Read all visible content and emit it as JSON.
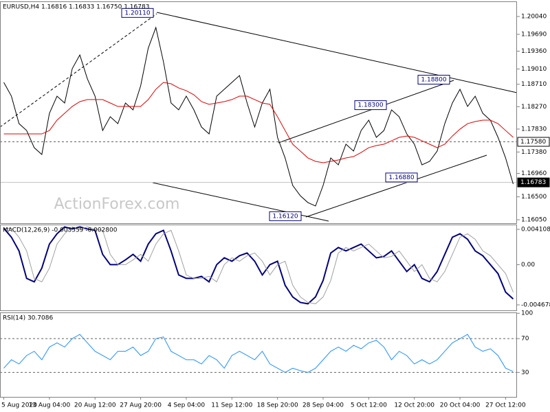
{
  "chart_data": [
    {
      "type": "line",
      "title": "EURUSD,H4  1.16816 1.16833 1.16750 1.16783",
      "categories": [
        "5 Aug 2020",
        null,
        null,
        null,
        null,
        null,
        "13 Aug 04:00",
        null,
        null,
        null,
        null,
        null,
        "20 Aug 12:00",
        null,
        null,
        null,
        null,
        null,
        "27 Aug 20:00",
        null,
        null,
        null,
        null,
        null,
        "4 Sep 04:00",
        null,
        null,
        null,
        null,
        null,
        "11 Sep 12:00",
        null,
        null,
        null,
        null,
        null,
        "18 Sep 20:00",
        null,
        null,
        null,
        null,
        null,
        "28 Sep 04:00",
        null,
        null,
        null,
        null,
        null,
        "5 Oct 12:00",
        null,
        null,
        null,
        null,
        null,
        "12 Oct 20:00",
        null,
        null,
        null,
        null,
        null,
        "20 Oct 04:00",
        null,
        null,
        null,
        null,
        null,
        "27 Oct 12:00",
        null
      ],
      "series": [
        {
          "color": "#000000",
          "values": [
            1.18746,
            1.18476,
            1.17937,
            1.17802,
            1.17465,
            1.17331,
            1.18139,
            1.18476,
            1.18342,
            1.19016,
            1.19285,
            1.18813,
            1.18476,
            1.17802,
            1.18072,
            1.17937,
            1.18342,
            1.18207,
            1.18679,
            1.1942,
            1.19824,
            1.1915,
            1.18342,
            1.18207,
            1.18476,
            1.18207,
            1.1787,
            1.17735,
            1.18476,
            1.18611,
            1.18746,
            1.18881,
            1.18342,
            1.1787,
            1.18342,
            1.18611,
            1.17668,
            1.17263,
            1.16724,
            1.16522,
            1.16387,
            1.1632,
            1.16724,
            1.17263,
            1.17128,
            1.17533,
            1.17398,
            1.17802,
            1.18005,
            1.17668,
            1.17802,
            1.18207,
            1.18072,
            1.17735,
            1.17533,
            1.17128,
            1.17196,
            1.17398,
            1.17937,
            1.18342,
            1.18611,
            1.18274,
            1.18476,
            1.18139,
            1.18005,
            1.17668,
            1.17263,
            1.16751
          ]
        },
        {
          "color": "#e00000",
          "values": [
            1.17735,
            1.17735,
            1.17735,
            1.17735,
            1.17735,
            1.17735,
            1.17802,
            1.18005,
            1.18139,
            1.18274,
            1.18369,
            1.18409,
            1.18409,
            1.18409,
            1.18342,
            1.18274,
            1.18274,
            1.18274,
            1.18274,
            1.18409,
            1.18611,
            1.18746,
            1.18719,
            1.18638,
            1.18584,
            1.18503,
            1.18369,
            1.18315,
            1.18342,
            1.18369,
            1.18409,
            1.18476,
            1.18476,
            1.18409,
            1.18342,
            1.18315,
            1.18072,
            1.17802,
            1.17533,
            1.17398,
            1.17263,
            1.17196,
            1.17169,
            1.17196,
            1.17223,
            1.17263,
            1.1729,
            1.17371,
            1.17465,
            1.17506,
            1.17533,
            1.176,
            1.17668,
            1.17694,
            1.17668,
            1.176,
            1.17533,
            1.17465,
            1.17533,
            1.17694,
            1.17829,
            1.17937,
            1.17978,
            1.18005,
            1.18005,
            1.17937,
            1.17802,
            1.17668
          ]
        }
      ],
      "ylim": [
        1.15983,
        1.20337
      ],
      "yticks": [
        {
          "value": 1.2004,
          "label": "1.20040"
        },
        {
          "value": 1.1969,
          "label": "1.19690"
        },
        {
          "value": 1.1936,
          "label": "1.19360"
        },
        {
          "value": 1.1901,
          "label": "1.19010"
        },
        {
          "value": 1.1871,
          "label": "1.18710"
        },
        {
          "value": 1.1827,
          "label": "1.18270"
        },
        {
          "value": 1.1783,
          "label": "1.17830"
        },
        {
          "value": 1.1738,
          "label": "1.17380"
        },
        {
          "value": 1.1696,
          "label": "1.16960"
        },
        {
          "value": 1.165,
          "label": "1.16500"
        },
        {
          "value": 1.1605,
          "label": "1.16050"
        }
      ],
      "annotations": [
        {
          "value": 1.2011,
          "label": "1.20110"
        },
        {
          "value": 1.188,
          "label": "1.18800"
        },
        {
          "value": 1.183,
          "label": "1.18300"
        },
        {
          "value": 1.1688,
          "label": "1.16880"
        },
        {
          "value": 1.1612,
          "label": "1.16120"
        }
      ],
      "levels": [
        {
          "value": 1.1758,
          "label": "1.17580"
        },
        {
          "value": 1.16783,
          "label": "1.16783"
        }
      ],
      "watermark": "ActionForex.com"
    },
    {
      "type": "line",
      "title": "MACD(12,26,9) -0.003559 -0.002800",
      "series": [
        {
          "color": "#00007f",
          "values": [
            0.004235,
            0.003196,
            0.001598,
            -0.001598,
            -0.001998,
            -0.0004,
            0.002397,
            0.003596,
            0.004395,
            0.004155,
            0.004395,
            0.004155,
            0.003995,
            0.001199,
            0,
            0,
            0.000559,
            0.001199,
            0.0004,
            0.002397,
            0.003596,
            0.003995,
            0.001598,
            -0.001199,
            -0.001598,
            -0.001598,
            -0.001358,
            -0.001998,
            0,
            0.000799,
            0.0004,
            0.001039,
            0.001358,
            0.0004,
            -0.001199,
            0,
            0.0004,
            -0.002397,
            -0.003755,
            -0.004395,
            -0.004554,
            -0.003755,
            -0.001838,
            0.001358,
            0.001998,
            0.001598,
            0.001998,
            0.002397,
            0.001598,
            0.000799,
            0.000959,
            0.001598,
            0.0004,
            -0.000799,
            0,
            -0.001598,
            -0.001998,
            -0.000799,
            0.001199,
            0.003196,
            0.003596,
            0.002956,
            0.001598,
            0.001039,
            0,
            -0.001039,
            -0.003196,
            -0.003995
          ]
        },
        {
          "color": "#a0a0a0",
          "values": [
            0.004235,
            0.004235,
            0.003196,
            0.001598,
            -0.001598,
            -0.001998,
            -0.0004,
            0.002397,
            0.003596,
            0.004395,
            0.004155,
            0.004395,
            0.004155,
            0.003995,
            0.001199,
            0,
            0,
            0.000559,
            0.001199,
            0.0004,
            0.002397,
            0.003596,
            0.003995,
            0.001598,
            -0.001199,
            -0.001598,
            -0.001598,
            -0.001358,
            -0.001998,
            0,
            0.000799,
            0.0004,
            0.001039,
            0.001358,
            0.0004,
            -0.001199,
            0,
            0.0004,
            -0.002397,
            -0.003755,
            -0.004395,
            -0.004554,
            -0.003755,
            -0.001838,
            0.001358,
            0.001998,
            0.001598,
            0.001998,
            0.002397,
            0.001598,
            0.000799,
            0.000959,
            0.001598,
            0.0004,
            -0.000799,
            0,
            -0.001598,
            -0.001998,
            -0.000799,
            0.001199,
            0.003196,
            0.003596,
            0.002956,
            0.001598,
            0.001039,
            0,
            -0.001039,
            -0.003196
          ]
        }
      ],
      "ylim": [
        -0.00532,
        0.00467
      ],
      "yticks": [
        0.004108,
        {
          "value": 0,
          "label": "0.00"
        },
        -0.004678
      ]
    },
    {
      "type": "line",
      "title": "RSI(14) 30.7086",
      "series": [
        {
          "color": "#1e90ff",
          "values": [
            35,
            45,
            40,
            50,
            55,
            45,
            60,
            65,
            60,
            70,
            75,
            65,
            55,
            50,
            45,
            55,
            55,
            60,
            50,
            55,
            70,
            72,
            55,
            50,
            45,
            45,
            40,
            50,
            45,
            35,
            50,
            55,
            50,
            45,
            55,
            40,
            35,
            30,
            35,
            32,
            30,
            35,
            45,
            55,
            60,
            55,
            62,
            58,
            65,
            68,
            60,
            45,
            55,
            50,
            40,
            45,
            40,
            45,
            55,
            65,
            70,
            75,
            60,
            55,
            58,
            50,
            35,
            31
          ]
        }
      ],
      "ylim": [
        1,
        101
      ],
      "yticks": [
        100,
        70,
        30
      ],
      "levels": [
        70,
        30
      ]
    }
  ]
}
